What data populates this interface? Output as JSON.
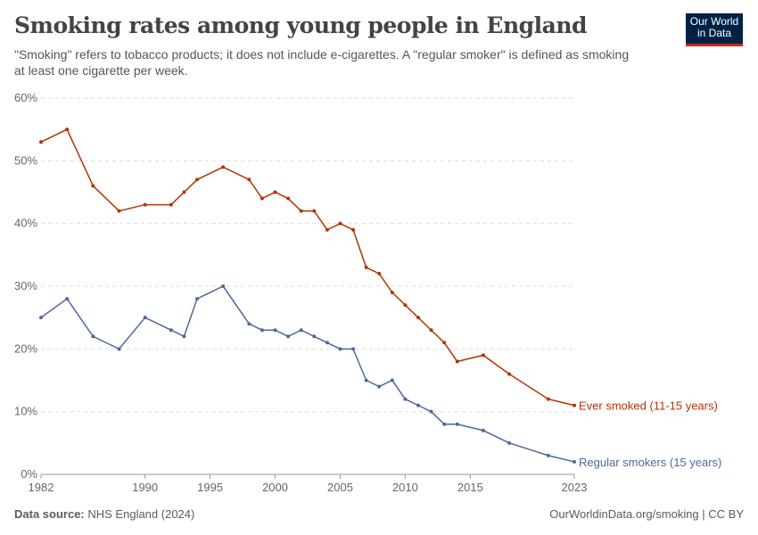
{
  "header": {
    "title": "Smoking rates among young people in England",
    "subtitle": "\"Smoking\" refers to tobacco products; it does not include e-cigarettes. A \"regular smoker\" is defined as smoking at least one cigarette per week.",
    "logo": "Our World in Data"
  },
  "footer": {
    "source_label": "Data source:",
    "source": "NHS England (2024)",
    "url": "OurWorldinData.org/smoking | CC BY"
  },
  "chart_data": {
    "type": "line",
    "title": "Smoking rates among young people in England",
    "xlim": [
      1982,
      2023
    ],
    "ylim": [
      0,
      60
    ],
    "x_ticks": [
      "1982",
      "1990",
      "1995",
      "2000",
      "2005",
      "2010",
      "2015",
      "2023"
    ],
    "y_ticks": [
      "0%",
      "10%",
      "20%",
      "30%",
      "40%",
      "50%",
      "60%"
    ],
    "grid": true,
    "legend": "inline-right",
    "x": [
      1982,
      1984,
      1986,
      1988,
      1990,
      1992,
      1993,
      1994,
      1996,
      1998,
      1999,
      2000,
      2001,
      2002,
      2003,
      2004,
      2005,
      2006,
      2007,
      2008,
      2009,
      2010,
      2011,
      2012,
      2013,
      2014,
      2016,
      2018,
      2021,
      2023
    ],
    "series": [
      {
        "name": "Ever smoked (11-15 years)",
        "color": "#b13507",
        "values": [
          53,
          55,
          46,
          42,
          43,
          43,
          45,
          47,
          49,
          47,
          44,
          45,
          44,
          42,
          42,
          39,
          40,
          39,
          33,
          32,
          29,
          27,
          25,
          23,
          21,
          18,
          19,
          16,
          12,
          11
        ]
      },
      {
        "name": "Regular smokers (15 years)",
        "color": "#4c6a9c",
        "values": [
          25,
          28,
          22,
          20,
          25,
          23,
          22,
          28,
          30,
          24,
          23,
          23,
          22,
          23,
          22,
          21,
          20,
          20,
          15,
          14,
          15,
          12,
          11,
          10,
          8,
          8,
          7,
          5,
          3,
          2
        ]
      }
    ]
  }
}
